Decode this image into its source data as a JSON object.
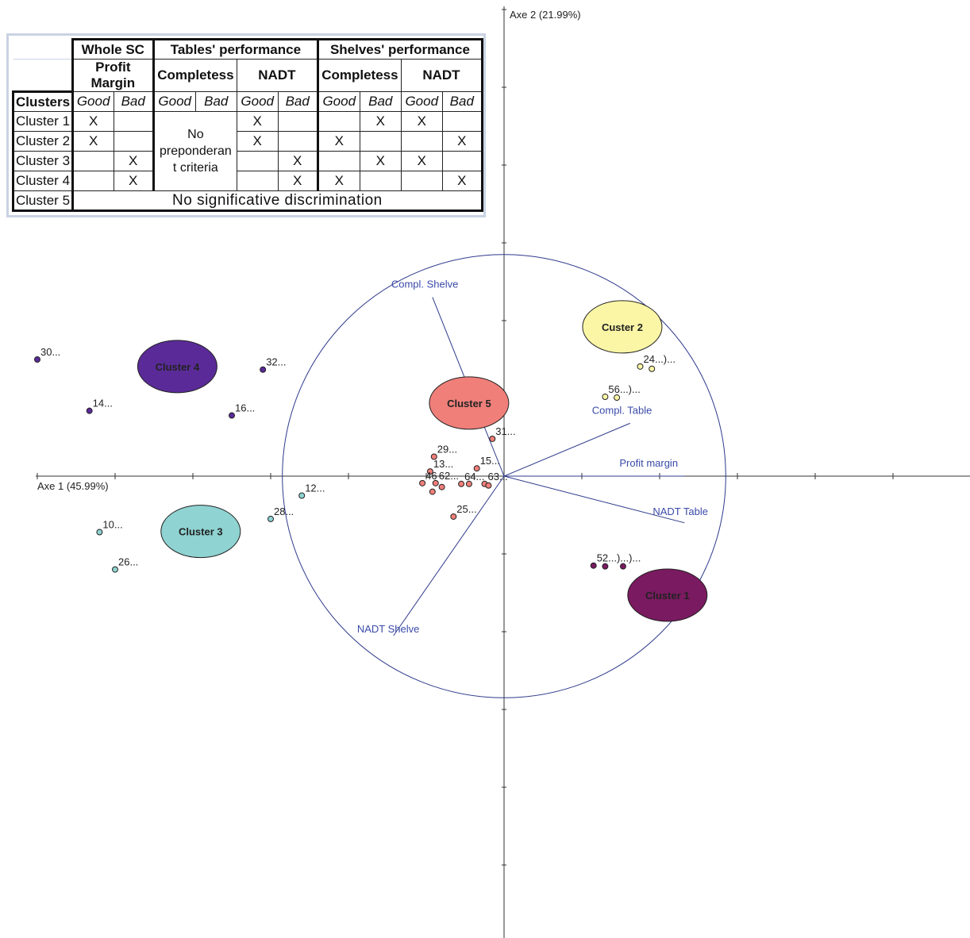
{
  "criteria_table": {
    "group_headers": [
      "Whole SC",
      "Tables' performance",
      "Shelves' performance"
    ],
    "sub_headers": [
      "Profit Margin",
      "Completess",
      "NADT",
      "Completess",
      "NADT"
    ],
    "clusters_label": "Clusters",
    "good_label": "Good",
    "bad_label": "Bad",
    "rows": [
      {
        "name": "Cluster 1",
        "cells": [
          "X",
          "",
          "",
          "",
          "X",
          "",
          "",
          "X",
          "X",
          ""
        ]
      },
      {
        "name": "Cluster 2",
        "cells": [
          "X",
          "",
          "",
          "",
          "X",
          "",
          "X",
          "",
          "",
          "X"
        ]
      },
      {
        "name": "Cluster 3",
        "cells": [
          "",
          "X",
          "",
          "",
          "",
          "X",
          "",
          "X",
          "X",
          ""
        ]
      },
      {
        "name": "Cluster 4",
        "cells": [
          "",
          "X",
          "",
          "",
          "",
          "X",
          "X",
          "",
          "",
          "X"
        ]
      }
    ],
    "no_criteria_text": "No preponderan t criteria",
    "cluster5_name": "Cluster 5",
    "cluster5_text": "No significative discrimination"
  },
  "colors": {
    "axis": "#333333",
    "circle": "#2e3a8c",
    "vector": "#2e3a8c",
    "vector_label": "#3a4aa8",
    "cluster1": "#7a1a60",
    "cluster2": "#fbf6a6",
    "cluster3": "#8fd3d2",
    "cluster4": "#5a2b98",
    "cluster5": "#f07f7a"
  },
  "chart_data": {
    "type": "scatter",
    "xlabel": "Axe 1 (45.99%)",
    "ylabel": "Axe 2 (21.99%)",
    "xlim": [
      -6,
      6
    ],
    "ylim": [
      -5.8,
      6
    ],
    "grid": false,
    "correlation_circle_radius": 2.85,
    "variables": [
      {
        "name": "Profit margin",
        "x": 2.32,
        "y": 0.0
      },
      {
        "name": "Compl. Table",
        "x": 1.62,
        "y": 0.68
      },
      {
        "name": "NADT Table",
        "x": 2.32,
        "y": -0.6
      },
      {
        "name": "Compl. Shelve",
        "x": -0.92,
        "y": 2.3
      },
      {
        "name": "NADT Shelve",
        "x": -1.42,
        "y": -2.05
      }
    ],
    "clusters": [
      {
        "name": "Cluster 1",
        "color_key": "cluster1",
        "x": 2.1,
        "y": -1.53
      },
      {
        "name": "Custer 2",
        "color_key": "cluster2",
        "x": 1.52,
        "y": 1.92
      },
      {
        "name": "Cluster 3",
        "color_key": "cluster3",
        "x": -3.9,
        "y": -0.71
      },
      {
        "name": "Cluster 4",
        "color_key": "cluster4",
        "x": -4.2,
        "y": 1.41
      },
      {
        "name": "Cluster 5",
        "color_key": "cluster5",
        "x": -0.45,
        "y": 0.94
      }
    ],
    "points": [
      {
        "label": "30...",
        "x": -6.0,
        "y": 1.5,
        "cluster": "cluster4"
      },
      {
        "label": "32...",
        "x": -3.1,
        "y": 1.37,
        "cluster": "cluster4"
      },
      {
        "label": "14...",
        "x": -5.33,
        "y": 0.84,
        "cluster": "cluster4"
      },
      {
        "label": "16...",
        "x": -3.5,
        "y": 0.78,
        "cluster": "cluster4"
      },
      {
        "label": "12...",
        "x": -2.6,
        "y": -0.25,
        "cluster": "cluster3"
      },
      {
        "label": "28...",
        "x": -3.0,
        "y": -0.55,
        "cluster": "cluster3"
      },
      {
        "label": "10...",
        "x": -5.2,
        "y": -0.72,
        "cluster": "cluster3"
      },
      {
        "label": "26...",
        "x": -5.0,
        "y": -1.2,
        "cluster": "cluster3"
      },
      {
        "label": "52...)...)...",
        "x": 1.15,
        "y": -1.15,
        "cluster": "cluster1"
      },
      {
        "label": "",
        "x": 1.3,
        "y": -1.16,
        "cluster": "cluster1"
      },
      {
        "label": "",
        "x": 1.53,
        "y": -1.16,
        "cluster": "cluster1"
      },
      {
        "label": "24...)...",
        "x": 1.75,
        "y": 1.41,
        "cluster": "cluster2"
      },
      {
        "label": "",
        "x": 1.9,
        "y": 1.38,
        "cluster": "cluster2"
      },
      {
        "label": "56...)...",
        "x": 1.3,
        "y": 1.02,
        "cluster": "cluster2"
      },
      {
        "label": "",
        "x": 1.45,
        "y": 1.01,
        "cluster": "cluster2"
      },
      {
        "label": "31...",
        "x": -0.15,
        "y": 0.48,
        "cluster": "cluster5"
      },
      {
        "label": "29...",
        "x": -0.9,
        "y": 0.25,
        "cluster": "cluster5"
      },
      {
        "label": "13...",
        "x": -0.95,
        "y": 0.06,
        "cluster": "cluster5"
      },
      {
        "label": "15...",
        "x": -0.35,
        "y": 0.1,
        "cluster": "cluster5"
      },
      {
        "label": "46",
        "x": -1.05,
        "y": -0.09,
        "cluster": "cluster5"
      },
      {
        "label": "62...",
        "x": -0.88,
        "y": -0.09,
        "cluster": "cluster5"
      },
      {
        "label": "64...",
        "x": -0.55,
        "y": -0.1,
        "cluster": "cluster5"
      },
      {
        "label": "63...",
        "x": -0.25,
        "y": -0.1,
        "cluster": "cluster5"
      },
      {
        "label": "",
        "x": -0.45,
        "y": -0.1,
        "cluster": "cluster5"
      },
      {
        "label": "",
        "x": -0.2,
        "y": -0.12,
        "cluster": "cluster5"
      },
      {
        "label": "",
        "x": -0.92,
        "y": -0.2,
        "cluster": "cluster5"
      },
      {
        "label": "",
        "x": -0.8,
        "y": -0.14,
        "cluster": "cluster5"
      },
      {
        "label": "25...",
        "x": -0.65,
        "y": -0.52,
        "cluster": "cluster5"
      }
    ]
  }
}
